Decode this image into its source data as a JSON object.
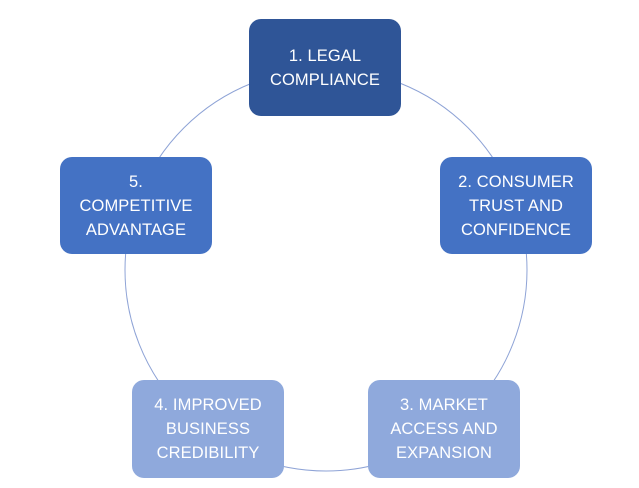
{
  "diagram": {
    "type": "cycle",
    "nodes": [
      {
        "lines": [
          "1. LEGAL",
          "COMPLIANCE"
        ],
        "color": "#2f5597"
      },
      {
        "lines": [
          "2. CONSUMER",
          "TRUST AND",
          "CONFIDENCE"
        ],
        "color": "#4472c4"
      },
      {
        "lines": [
          "3. MARKET",
          "ACCESS AND",
          "EXPANSION"
        ],
        "color": "#8fa9dc"
      },
      {
        "lines": [
          "4. IMPROVED",
          "BUSINESS",
          "CREDIBILITY"
        ],
        "color": "#8fa9dc"
      },
      {
        "lines": [
          "5.",
          "COMPETITIVE",
          "ADVANTAGE"
        ],
        "color": "#4472c4"
      }
    ],
    "ring_color": "#8ea3d6"
  }
}
